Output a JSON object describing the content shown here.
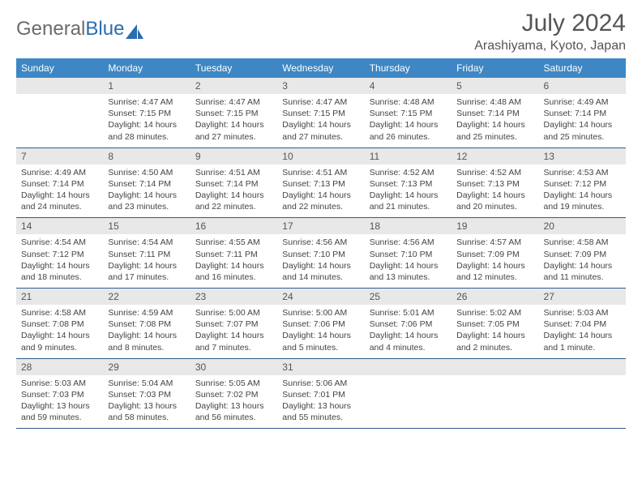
{
  "logo": {
    "text_gray": "General",
    "text_blue": "Blue"
  },
  "title": "July 2024",
  "location": "Arashiyama, Kyoto, Japan",
  "colors": {
    "header_bg": "#3e87c4",
    "header_text": "#ffffff",
    "daynum_bg": "#e8e8e8",
    "border": "#2f5d8a"
  },
  "day_names": [
    "Sunday",
    "Monday",
    "Tuesday",
    "Wednesday",
    "Thursday",
    "Friday",
    "Saturday"
  ],
  "weeks": [
    [
      {
        "n": "",
        "sunrise": "",
        "sunset": "",
        "daylight": ""
      },
      {
        "n": "1",
        "sunrise": "Sunrise: 4:47 AM",
        "sunset": "Sunset: 7:15 PM",
        "daylight": "Daylight: 14 hours and 28 minutes."
      },
      {
        "n": "2",
        "sunrise": "Sunrise: 4:47 AM",
        "sunset": "Sunset: 7:15 PM",
        "daylight": "Daylight: 14 hours and 27 minutes."
      },
      {
        "n": "3",
        "sunrise": "Sunrise: 4:47 AM",
        "sunset": "Sunset: 7:15 PM",
        "daylight": "Daylight: 14 hours and 27 minutes."
      },
      {
        "n": "4",
        "sunrise": "Sunrise: 4:48 AM",
        "sunset": "Sunset: 7:15 PM",
        "daylight": "Daylight: 14 hours and 26 minutes."
      },
      {
        "n": "5",
        "sunrise": "Sunrise: 4:48 AM",
        "sunset": "Sunset: 7:14 PM",
        "daylight": "Daylight: 14 hours and 25 minutes."
      },
      {
        "n": "6",
        "sunrise": "Sunrise: 4:49 AM",
        "sunset": "Sunset: 7:14 PM",
        "daylight": "Daylight: 14 hours and 25 minutes."
      }
    ],
    [
      {
        "n": "7",
        "sunrise": "Sunrise: 4:49 AM",
        "sunset": "Sunset: 7:14 PM",
        "daylight": "Daylight: 14 hours and 24 minutes."
      },
      {
        "n": "8",
        "sunrise": "Sunrise: 4:50 AM",
        "sunset": "Sunset: 7:14 PM",
        "daylight": "Daylight: 14 hours and 23 minutes."
      },
      {
        "n": "9",
        "sunrise": "Sunrise: 4:51 AM",
        "sunset": "Sunset: 7:14 PM",
        "daylight": "Daylight: 14 hours and 22 minutes."
      },
      {
        "n": "10",
        "sunrise": "Sunrise: 4:51 AM",
        "sunset": "Sunset: 7:13 PM",
        "daylight": "Daylight: 14 hours and 22 minutes."
      },
      {
        "n": "11",
        "sunrise": "Sunrise: 4:52 AM",
        "sunset": "Sunset: 7:13 PM",
        "daylight": "Daylight: 14 hours and 21 minutes."
      },
      {
        "n": "12",
        "sunrise": "Sunrise: 4:52 AM",
        "sunset": "Sunset: 7:13 PM",
        "daylight": "Daylight: 14 hours and 20 minutes."
      },
      {
        "n": "13",
        "sunrise": "Sunrise: 4:53 AM",
        "sunset": "Sunset: 7:12 PM",
        "daylight": "Daylight: 14 hours and 19 minutes."
      }
    ],
    [
      {
        "n": "14",
        "sunrise": "Sunrise: 4:54 AM",
        "sunset": "Sunset: 7:12 PM",
        "daylight": "Daylight: 14 hours and 18 minutes."
      },
      {
        "n": "15",
        "sunrise": "Sunrise: 4:54 AM",
        "sunset": "Sunset: 7:11 PM",
        "daylight": "Daylight: 14 hours and 17 minutes."
      },
      {
        "n": "16",
        "sunrise": "Sunrise: 4:55 AM",
        "sunset": "Sunset: 7:11 PM",
        "daylight": "Daylight: 14 hours and 16 minutes."
      },
      {
        "n": "17",
        "sunrise": "Sunrise: 4:56 AM",
        "sunset": "Sunset: 7:10 PM",
        "daylight": "Daylight: 14 hours and 14 minutes."
      },
      {
        "n": "18",
        "sunrise": "Sunrise: 4:56 AM",
        "sunset": "Sunset: 7:10 PM",
        "daylight": "Daylight: 14 hours and 13 minutes."
      },
      {
        "n": "19",
        "sunrise": "Sunrise: 4:57 AM",
        "sunset": "Sunset: 7:09 PM",
        "daylight": "Daylight: 14 hours and 12 minutes."
      },
      {
        "n": "20",
        "sunrise": "Sunrise: 4:58 AM",
        "sunset": "Sunset: 7:09 PM",
        "daylight": "Daylight: 14 hours and 11 minutes."
      }
    ],
    [
      {
        "n": "21",
        "sunrise": "Sunrise: 4:58 AM",
        "sunset": "Sunset: 7:08 PM",
        "daylight": "Daylight: 14 hours and 9 minutes."
      },
      {
        "n": "22",
        "sunrise": "Sunrise: 4:59 AM",
        "sunset": "Sunset: 7:08 PM",
        "daylight": "Daylight: 14 hours and 8 minutes."
      },
      {
        "n": "23",
        "sunrise": "Sunrise: 5:00 AM",
        "sunset": "Sunset: 7:07 PM",
        "daylight": "Daylight: 14 hours and 7 minutes."
      },
      {
        "n": "24",
        "sunrise": "Sunrise: 5:00 AM",
        "sunset": "Sunset: 7:06 PM",
        "daylight": "Daylight: 14 hours and 5 minutes."
      },
      {
        "n": "25",
        "sunrise": "Sunrise: 5:01 AM",
        "sunset": "Sunset: 7:06 PM",
        "daylight": "Daylight: 14 hours and 4 minutes."
      },
      {
        "n": "26",
        "sunrise": "Sunrise: 5:02 AM",
        "sunset": "Sunset: 7:05 PM",
        "daylight": "Daylight: 14 hours and 2 minutes."
      },
      {
        "n": "27",
        "sunrise": "Sunrise: 5:03 AM",
        "sunset": "Sunset: 7:04 PM",
        "daylight": "Daylight: 14 hours and 1 minute."
      }
    ],
    [
      {
        "n": "28",
        "sunrise": "Sunrise: 5:03 AM",
        "sunset": "Sunset: 7:03 PM",
        "daylight": "Daylight: 13 hours and 59 minutes."
      },
      {
        "n": "29",
        "sunrise": "Sunrise: 5:04 AM",
        "sunset": "Sunset: 7:03 PM",
        "daylight": "Daylight: 13 hours and 58 minutes."
      },
      {
        "n": "30",
        "sunrise": "Sunrise: 5:05 AM",
        "sunset": "Sunset: 7:02 PM",
        "daylight": "Daylight: 13 hours and 56 minutes."
      },
      {
        "n": "31",
        "sunrise": "Sunrise: 5:06 AM",
        "sunset": "Sunset: 7:01 PM",
        "daylight": "Daylight: 13 hours and 55 minutes."
      },
      {
        "n": "",
        "sunrise": "",
        "sunset": "",
        "daylight": ""
      },
      {
        "n": "",
        "sunrise": "",
        "sunset": "",
        "daylight": ""
      },
      {
        "n": "",
        "sunrise": "",
        "sunset": "",
        "daylight": ""
      }
    ]
  ]
}
